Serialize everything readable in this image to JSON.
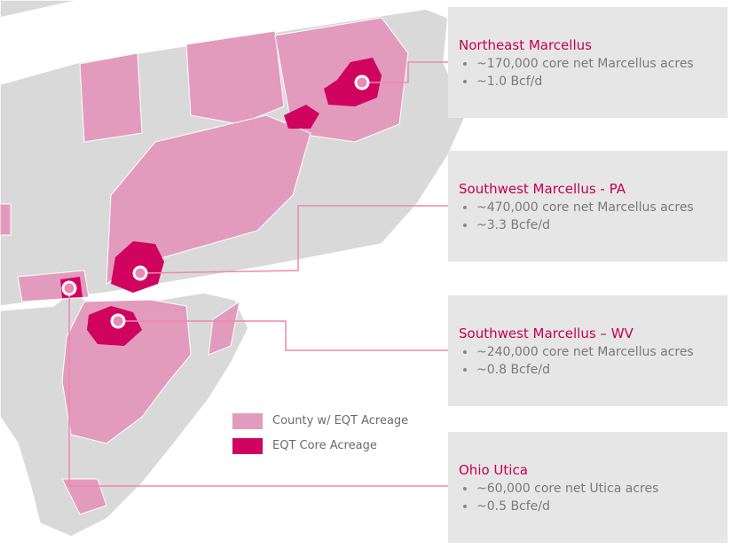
{
  "regions": [
    {
      "title": "Northeast Marcellus",
      "bullets": [
        "~170,000 core net Marcellus acres",
        "~1.0 Bcf/d"
      ]
    },
    {
      "title": "Southwest Marcellus - PA",
      "bullets": [
        "~470,000 core net Marcellus acres",
        "~3.3 Bcfe/d"
      ]
    },
    {
      "title": "Southwest Marcellus – WV",
      "bullets": [
        "~240,000 core net Marcellus acres",
        "~0.8 Bcfe/d"
      ]
    },
    {
      "title": "Ohio Utica",
      "bullets": [
        "~60,000 core net Utica acres",
        "~0.5 Bcfe/d"
      ]
    }
  ],
  "legend": [
    {
      "label": "County w/ EQT Acreage",
      "color": "#e29bbd"
    },
    {
      "label": "EQT Core Acreage",
      "color": "#d0045f"
    }
  ]
}
